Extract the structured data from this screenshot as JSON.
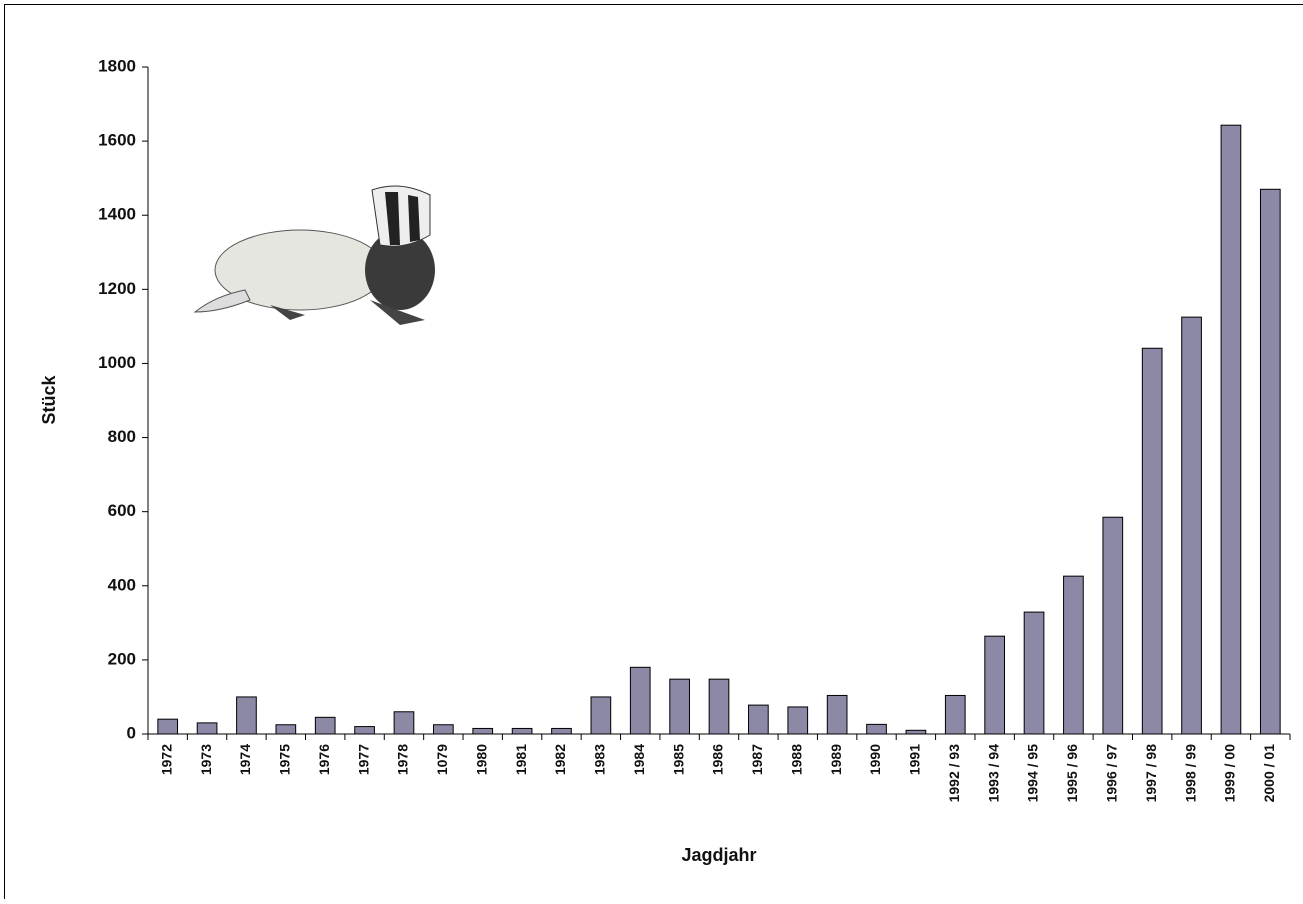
{
  "chart_data": {
    "type": "bar",
    "x_label": "Jagdjahr",
    "y_label": "Stück",
    "categories": [
      "1972",
      "1973",
      "1974",
      "1975",
      "1976",
      "1977",
      "1978",
      "1079",
      "1980",
      "1981",
      "1982",
      "1983",
      "1984",
      "1985",
      "1986",
      "1987",
      "1988",
      "1989",
      "1990",
      "1991",
      "1992 / 93",
      "1993 / 94",
      "1994 / 95",
      "1995 / 96",
      "1996 / 97",
      "1997 / 98",
      "1998 / 99",
      "1999 / 00",
      "2000 / 01"
    ],
    "values": [
      40,
      30,
      100,
      25,
      45,
      20,
      60,
      25,
      15,
      15,
      15,
      100,
      180,
      148,
      148,
      78,
      73,
      104,
      26,
      10,
      104,
      264,
      329,
      426,
      585,
      1041,
      1125,
      1643,
      1470
    ],
    "color": "#8b89a6",
    "ylim": [
      0,
      1800
    ],
    "yticks": [
      0,
      200,
      400,
      600,
      800,
      1000,
      1200,
      1400,
      1600,
      1800
    ],
    "grid": false
  }
}
